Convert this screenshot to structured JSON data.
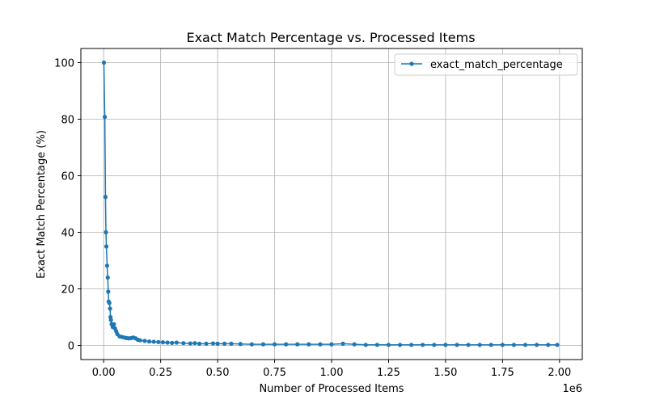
{
  "chart_data": {
    "type": "line",
    "title": "Exact Match Percentage vs. Processed Items",
    "xlabel": "Number of Processed Items",
    "ylabel": "Exact Match Percentage (%)",
    "x_offset_label": "1e6",
    "xlim": [
      -100000,
      2100000
    ],
    "ylim": [
      -5,
      105
    ],
    "grid": true,
    "legend_position": "top-right",
    "x_ticks": [
      0,
      250000,
      500000,
      750000,
      1000000,
      1250000,
      1500000,
      1750000,
      2000000
    ],
    "x_tick_labels": [
      "0.00",
      "0.25",
      "0.50",
      "0.75",
      "1.00",
      "1.25",
      "1.50",
      "1.75",
      "2.00"
    ],
    "y_ticks": [
      0,
      20,
      40,
      60,
      80,
      100
    ],
    "y_tick_labels": [
      "0",
      "20",
      "40",
      "60",
      "80",
      "100"
    ],
    "series": [
      {
        "name": "exact_match_percentage",
        "color": "#1f77b4",
        "x": [
          1000,
          5000,
          8000,
          10000,
          12000,
          15000,
          18000,
          20000,
          22000,
          25000,
          28000,
          30000,
          32000,
          35000,
          40000,
          45000,
          50000,
          55000,
          60000,
          70000,
          80000,
          90000,
          100000,
          110000,
          120000,
          130000,
          140000,
          150000,
          160000,
          180000,
          200000,
          220000,
          240000,
          260000,
          280000,
          300000,
          320000,
          350000,
          380000,
          400000,
          420000,
          450000,
          480000,
          500000,
          530000,
          560000,
          600000,
          650000,
          700000,
          750000,
          800000,
          850000,
          900000,
          950000,
          1000000,
          1050000,
          1100000,
          1150000,
          1200000,
          1250000,
          1300000,
          1350000,
          1400000,
          1450000,
          1500000,
          1550000,
          1600000,
          1650000,
          1700000,
          1750000,
          1800000,
          1850000,
          1900000,
          1950000,
          1990000
        ],
        "values": [
          100,
          80.8,
          52.5,
          40.0,
          35.0,
          28.2,
          24.0,
          19.0,
          15.5,
          15.0,
          13.0,
          10.0,
          9.0,
          7.5,
          6.5,
          7.5,
          6.0,
          5.0,
          4.0,
          3.2,
          3.0,
          2.8,
          2.6,
          2.5,
          2.6,
          2.8,
          2.5,
          2.0,
          1.8,
          1.6,
          1.4,
          1.3,
          1.2,
          1.1,
          1.0,
          0.9,
          1.0,
          0.8,
          0.7,
          0.8,
          0.6,
          0.6,
          0.7,
          0.6,
          0.6,
          0.6,
          0.5,
          0.4,
          0.4,
          0.4,
          0.4,
          0.4,
          0.4,
          0.4,
          0.4,
          0.6,
          0.4,
          0.2,
          0.2,
          0.2,
          0.2,
          0.2,
          0.2,
          0.2,
          0.2,
          0.2,
          0.2,
          0.2,
          0.2,
          0.2,
          0.2,
          0.2,
          0.2,
          0.2,
          0.2
        ]
      }
    ]
  }
}
